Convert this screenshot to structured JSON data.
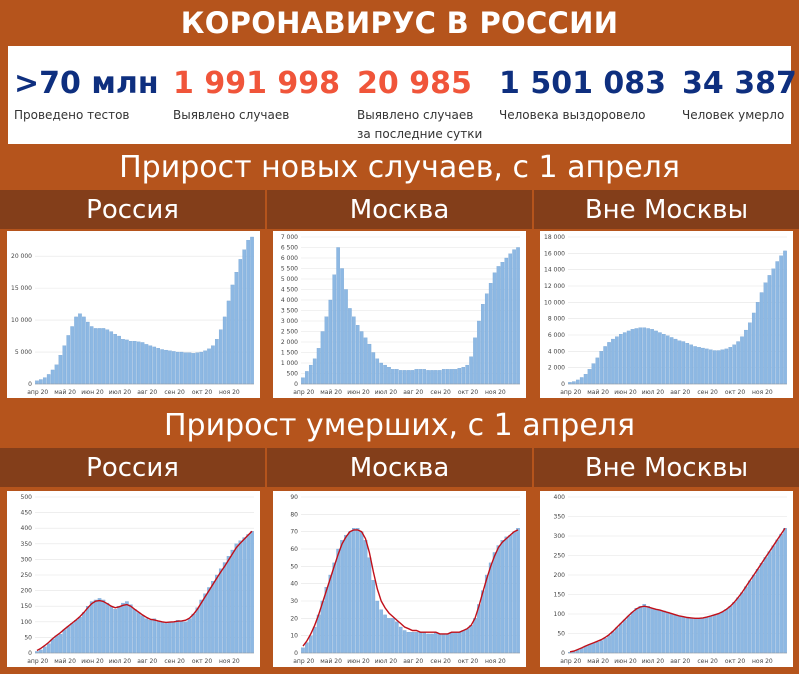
{
  "header": {
    "title": "КОРОНАВИРУС В РОССИИ"
  },
  "stats": [
    {
      "value": ">70 млн",
      "label_lines": [
        "Проведено тестов"
      ],
      "color": "#0e2f7f"
    },
    {
      "value": "1 991 998",
      "label_lines": [
        "Выявлено случаев"
      ],
      "color": "#f0553a"
    },
    {
      "value": "20 985",
      "label_lines": [
        "Выявлено случаев",
        "за последние сутки"
      ],
      "color": "#f0553a"
    },
    {
      "value": "1 501 083",
      "label_lines": [
        "Человека выздоровело"
      ],
      "color": "#0e2f7f"
    },
    {
      "value": "34 387",
      "label_lines": [
        "Человек умерло"
      ],
      "color": "#0e2f7f"
    }
  ],
  "sections": [
    {
      "title": "Прирост новых случаев, с 1 апреля",
      "columns": [
        "Россия",
        "Москва",
        "Вне Москвы"
      ]
    },
    {
      "title": "Прирост умерших, с 1 апреля",
      "columns": [
        "Россия",
        "Москва",
        "Вне Москвы"
      ]
    }
  ],
  "colors": {
    "bar": "#8db8e3",
    "bar_edge": "#6f9fd0",
    "avg_line": "#c0101a",
    "background": "#b5541c",
    "column_header": "#833e1a"
  },
  "chart_data": [
    {
      "type": "bar",
      "title": "Россия",
      "x_ticks": [
        "апр 20",
        "май 20",
        "июн 20",
        "июл 20",
        "авг 20",
        "сен 20",
        "окт 20",
        "ноя 20"
      ],
      "y_ticks": [
        "0",
        "5 000",
        "10 000",
        "15 000",
        "20 000"
      ],
      "ylim": [
        0,
        23000
      ],
      "series": [
        {
          "values": [
            500,
            700,
            1000,
            1500,
            2200,
            3000,
            4500,
            6000,
            7600,
            9000,
            10500,
            11000,
            10500,
            9700,
            9000,
            8700,
            8700,
            8700,
            8500,
            8200,
            7800,
            7500,
            7000,
            6900,
            6700,
            6700,
            6600,
            6500,
            6200,
            6000,
            5800,
            5600,
            5400,
            5300,
            5200,
            5100,
            5000,
            5000,
            4900,
            4900,
            4800,
            4900,
            5000,
            5200,
            5500,
            6000,
            7000,
            8500,
            10500,
            13000,
            15500,
            17500,
            19500,
            21000,
            22500,
            23000
          ]
        }
      ]
    },
    {
      "type": "bar",
      "title": "Москва",
      "x_ticks": [
        "апр 20",
        "май 20",
        "июн 20",
        "июл 20",
        "авг 20",
        "сен 20",
        "окт 20",
        "ноя 20"
      ],
      "y_ticks": [
        "0",
        "500",
        "1 000",
        "1 500",
        "2 000",
        "2 500",
        "3 000",
        "3 500",
        "4 000",
        "4 500",
        "5 000",
        "5 500",
        "6 000",
        "6 500",
        "7 000"
      ],
      "ylim": [
        0,
        7000
      ],
      "series": [
        {
          "values": [
            300,
            600,
            900,
            1200,
            1700,
            2500,
            3200,
            4000,
            5200,
            6500,
            5500,
            4500,
            3600,
            3200,
            2800,
            2500,
            2200,
            1900,
            1500,
            1200,
            1000,
            900,
            800,
            700,
            700,
            650,
            650,
            650,
            650,
            700,
            700,
            700,
            650,
            650,
            650,
            650,
            700,
            700,
            700,
            700,
            750,
            800,
            900,
            1300,
            2200,
            3000,
            3800,
            4300,
            4800,
            5300,
            5600,
            5800,
            6000,
            6200,
            6400,
            6500
          ]
        }
      ]
    },
    {
      "type": "bar",
      "title": "Вне Москвы",
      "x_ticks": [
        "апр 20",
        "май 20",
        "июн 20",
        "июл 20",
        "авг 20",
        "сен 20",
        "окт 20",
        "ноя 20"
      ],
      "y_ticks": [
        "0",
        "2 000",
        "4 000",
        "6 000",
        "8 000",
        "10 000",
        "12 000",
        "14 000",
        "16 000",
        "18 000"
      ],
      "ylim": [
        0,
        18000
      ],
      "series": [
        {
          "values": [
            200,
            300,
            500,
            800,
            1200,
            1800,
            2500,
            3200,
            4000,
            4600,
            5100,
            5500,
            5800,
            6100,
            6300,
            6500,
            6700,
            6800,
            6900,
            6900,
            6800,
            6700,
            6500,
            6300,
            6100,
            5900,
            5700,
            5500,
            5300,
            5200,
            5000,
            4800,
            4600,
            4500,
            4400,
            4300,
            4200,
            4100,
            4100,
            4200,
            4300,
            4500,
            4800,
            5200,
            5800,
            6600,
            7500,
            8700,
            10000,
            11200,
            12400,
            13300,
            14100,
            15000,
            15700,
            16300
          ]
        }
      ]
    },
    {
      "type": "bar",
      "title": "Россия",
      "x_ticks": [
        "апр 20",
        "май 20",
        "июн 20",
        "июл 20",
        "авг 20",
        "сен 20",
        "окт 20",
        "ноя 20"
      ],
      "y_ticks": [
        "0",
        "50",
        "100",
        "150",
        "200",
        "250",
        "300",
        "350",
        "400",
        "450",
        "500"
      ],
      "ylim": [
        0,
        500
      ],
      "series": [
        {
          "values": [
            5,
            10,
            20,
            30,
            45,
            55,
            60,
            75,
            85,
            95,
            105,
            115,
            130,
            150,
            165,
            170,
            175,
            170,
            160,
            150,
            140,
            150,
            160,
            165,
            155,
            140,
            130,
            120,
            110,
            105,
            110,
            100,
            100,
            95,
            100,
            100,
            105,
            100,
            100,
            110,
            125,
            145,
            170,
            190,
            210,
            230,
            250,
            270,
            290,
            310,
            330,
            350,
            360,
            370,
            380,
            390
          ]
        },
        {
          "name": "",
          "values": [
            8,
            15,
            24,
            34,
            46,
            56,
            65,
            76,
            86,
            96,
            106,
            117,
            130,
            145,
            158,
            166,
            168,
            165,
            158,
            150,
            145,
            148,
            153,
            155,
            150,
            140,
            131,
            122,
            114,
            108,
            106,
            103,
            100,
            98,
            99,
            100,
            102,
            103,
            105,
            112,
            124,
            140,
            160,
            180,
            200,
            220,
            240,
            260,
            278,
            298,
            318,
            338,
            352,
            365,
            378,
            390
          ]
        }
      ]
    },
    {
      "type": "bar",
      "title": "Москва",
      "x_ticks": [
        "апр 20",
        "май 20",
        "июн 20",
        "июл 20",
        "авг 20",
        "сен 20",
        "окт 20",
        "ноя 20"
      ],
      "y_ticks": [
        "0",
        "10",
        "20",
        "30",
        "40",
        "50",
        "60",
        "70",
        "80",
        "90"
      ],
      "ylim": [
        0,
        90
      ],
      "series": [
        {
          "values": [
            3,
            6,
            10,
            15,
            22,
            30,
            38,
            45,
            52,
            60,
            65,
            68,
            70,
            72,
            72,
            70,
            65,
            55,
            42,
            30,
            25,
            22,
            20,
            20,
            18,
            15,
            13,
            12,
            12,
            12,
            12,
            12,
            11,
            11,
            12,
            11,
            11,
            11,
            12,
            12,
            12,
            13,
            14,
            16,
            20,
            28,
            36,
            45,
            52,
            58,
            62,
            65,
            67,
            68,
            70,
            72
          ]
        },
        {
          "name": "",
          "values": [
            4,
            7,
            11,
            16,
            22,
            29,
            36,
            43,
            50,
            57,
            63,
            67,
            70,
            71,
            71,
            70,
            66,
            58,
            47,
            37,
            30,
            26,
            23,
            21,
            19,
            17,
            15,
            14,
            13,
            13,
            12,
            12,
            12,
            12,
            12,
            11,
            11,
            11,
            12,
            12,
            12,
            13,
            14,
            16,
            20,
            27,
            35,
            43,
            50,
            56,
            61,
            64,
            66,
            68,
            70,
            71
          ]
        }
      ]
    },
    {
      "type": "bar",
      "title": "Вне Москвы",
      "x_ticks": [
        "апр 20",
        "май 20",
        "июн 20",
        "июл 20",
        "авг 20",
        "сен 20",
        "окт 20",
        "ноя 20"
      ],
      "y_ticks": [
        "0",
        "50",
        "100",
        "150",
        "200",
        "250",
        "300",
        "350",
        "400"
      ],
      "ylim": [
        0,
        400
      ],
      "series": [
        {
          "values": [
            2,
            4,
            8,
            12,
            18,
            22,
            25,
            28,
            32,
            38,
            45,
            55,
            65,
            75,
            85,
            95,
            105,
            115,
            120,
            125,
            120,
            115,
            112,
            110,
            108,
            105,
            100,
            98,
            95,
            92,
            90,
            90,
            88,
            88,
            90,
            92,
            95,
            98,
            100,
            105,
            112,
            120,
            130,
            142,
            155,
            170,
            185,
            200,
            215,
            230,
            245,
            260,
            275,
            290,
            305,
            320
          ]
        },
        {
          "name": "",
          "values": [
            3,
            5,
            9,
            13,
            18,
            22,
            26,
            30,
            34,
            40,
            47,
            56,
            66,
            76,
            86,
            96,
            105,
            113,
            118,
            120,
            118,
            115,
            112,
            110,
            107,
            104,
            101,
            98,
            95,
            93,
            91,
            90,
            89,
            89,
            90,
            92,
            95,
            98,
            101,
            106,
            112,
            120,
            130,
            142,
            155,
            170,
            185,
            200,
            215,
            230,
            245,
            260,
            275,
            290,
            305,
            320
          ]
        }
      ]
    }
  ]
}
